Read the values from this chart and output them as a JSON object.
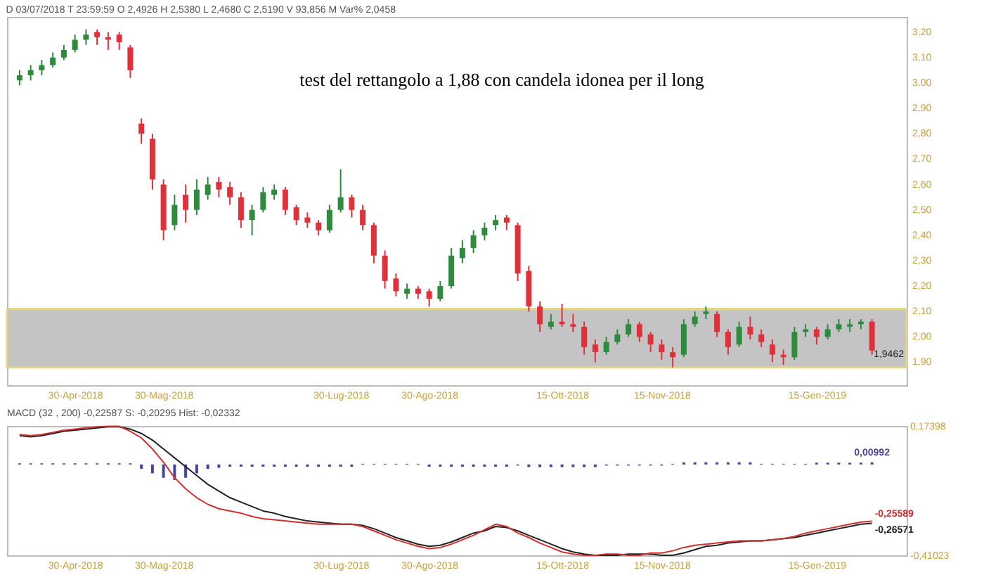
{
  "chart_data": [
    {
      "type": "candlestick",
      "subtitle": "D 03/07/2018 T 23:59:59 O 2,4926 H 2,5380 L 2,4680 C 2,5190 V 93,856 M Var% 2,0458",
      "categories": [
        null,
        null,
        null,
        null,
        null,
        "30-Apr-2018",
        null,
        null,
        null,
        null,
        null,
        null,
        null,
        "30-Mag-2018",
        null,
        null,
        null,
        null,
        null,
        null,
        null,
        null,
        null,
        null,
        null,
        null,
        null,
        null,
        null,
        "30-Lug-2018",
        null,
        null,
        null,
        null,
        null,
        null,
        null,
        "30-Ago-2018",
        null,
        null,
        null,
        null,
        null,
        null,
        null,
        null,
        null,
        null,
        null,
        "15-Ott-2018",
        null,
        null,
        null,
        null,
        null,
        null,
        null,
        null,
        "15-Nov-2018",
        null,
        null,
        null,
        null,
        null,
        null,
        null,
        null,
        null,
        null,
        null,
        null,
        null,
        "15-Gen-2019",
        null,
        null,
        null,
        null,
        null
      ],
      "ohlc": [
        [
          3.01,
          3.05,
          2.99,
          3.03
        ],
        [
          3.03,
          3.07,
          3.01,
          3.05
        ],
        [
          3.05,
          3.09,
          3.03,
          3.07
        ],
        [
          3.07,
          3.12,
          3.06,
          3.1
        ],
        [
          3.1,
          3.15,
          3.09,
          3.13
        ],
        [
          3.13,
          3.19,
          3.12,
          3.17
        ],
        [
          3.17,
          3.21,
          3.15,
          3.19
        ],
        [
          3.2,
          3.21,
          3.15,
          3.18
        ],
        [
          3.18,
          3.2,
          3.13,
          3.17
        ],
        [
          3.19,
          3.2,
          3.13,
          3.16
        ],
        [
          3.14,
          3.15,
          3.02,
          3.05
        ],
        [
          2.84,
          2.86,
          2.76,
          2.8
        ],
        [
          2.78,
          2.8,
          2.58,
          2.62
        ],
        [
          2.6,
          2.62,
          2.38,
          2.42
        ],
        [
          2.44,
          2.56,
          2.42,
          2.52
        ],
        [
          2.56,
          2.6,
          2.45,
          2.5
        ],
        [
          2.5,
          2.62,
          2.48,
          2.58
        ],
        [
          2.56,
          2.63,
          2.54,
          2.6
        ],
        [
          2.61,
          2.63,
          2.55,
          2.58
        ],
        [
          2.59,
          2.61,
          2.52,
          2.55
        ],
        [
          2.55,
          2.57,
          2.43,
          2.46
        ],
        [
          2.46,
          2.52,
          2.4,
          2.5
        ],
        [
          2.5,
          2.59,
          2.49,
          2.57
        ],
        [
          2.56,
          2.6,
          2.54,
          2.58
        ],
        [
          2.58,
          2.59,
          2.48,
          2.5
        ],
        [
          2.51,
          2.52,
          2.44,
          2.46
        ],
        [
          2.47,
          2.49,
          2.43,
          2.45
        ],
        [
          2.45,
          2.46,
          2.4,
          2.42
        ],
        [
          2.42,
          2.52,
          2.41,
          2.5
        ],
        [
          2.5,
          2.66,
          2.49,
          2.55
        ],
        [
          2.55,
          2.56,
          2.47,
          2.5
        ],
        [
          2.5,
          2.52,
          2.42,
          2.44
        ],
        [
          2.44,
          2.45,
          2.29,
          2.32
        ],
        [
          2.32,
          2.34,
          2.19,
          2.22
        ],
        [
          2.23,
          2.25,
          2.16,
          2.18
        ],
        [
          2.17,
          2.21,
          2.15,
          2.19
        ],
        [
          2.19,
          2.2,
          2.15,
          2.17
        ],
        [
          2.18,
          2.19,
          2.12,
          2.15
        ],
        [
          2.15,
          2.22,
          2.14,
          2.2
        ],
        [
          2.2,
          2.35,
          2.19,
          2.32
        ],
        [
          2.31,
          2.38,
          2.29,
          2.35
        ],
        [
          2.35,
          2.42,
          2.33,
          2.4
        ],
        [
          2.4,
          2.45,
          2.38,
          2.43
        ],
        [
          2.44,
          2.48,
          2.42,
          2.46
        ],
        [
          2.47,
          2.48,
          2.42,
          2.45
        ],
        [
          2.44,
          2.45,
          2.22,
          2.25
        ],
        [
          2.26,
          2.28,
          2.1,
          2.12
        ],
        [
          2.12,
          2.14,
          2.02,
          2.05
        ],
        [
          2.04,
          2.09,
          2.03,
          2.06
        ],
        [
          2.06,
          2.13,
          2.04,
          2.05
        ],
        [
          2.05,
          2.09,
          2.02,
          2.04
        ],
        [
          2.04,
          2.06,
          1.93,
          1.96
        ],
        [
          1.97,
          1.99,
          1.9,
          1.94
        ],
        [
          1.94,
          2.0,
          1.93,
          1.98
        ],
        [
          1.98,
          2.03,
          1.97,
          2.01
        ],
        [
          2.01,
          2.07,
          2.0,
          2.05
        ],
        [
          2.05,
          2.06,
          1.98,
          2.0
        ],
        [
          2.01,
          2.02,
          1.94,
          1.97
        ],
        [
          1.97,
          1.99,
          1.91,
          1.94
        ],
        [
          1.94,
          1.96,
          1.88,
          1.92
        ],
        [
          1.93,
          2.07,
          1.92,
          2.05
        ],
        [
          2.05,
          2.1,
          2.04,
          2.08
        ],
        [
          2.09,
          2.12,
          2.07,
          2.1
        ],
        [
          2.09,
          2.1,
          2.0,
          2.02
        ],
        [
          2.02,
          2.03,
          1.93,
          1.96
        ],
        [
          1.97,
          2.06,
          1.96,
          2.04
        ],
        [
          2.04,
          2.08,
          1.99,
          2.01
        ],
        [
          2.01,
          2.03,
          1.96,
          1.98
        ],
        [
          1.97,
          1.99,
          1.9,
          1.93
        ],
        [
          1.93,
          1.95,
          1.89,
          1.92
        ],
        [
          1.92,
          2.04,
          1.91,
          2.02
        ],
        [
          2.02,
          2.05,
          2.0,
          2.03
        ],
        [
          2.03,
          2.04,
          1.97,
          2.0
        ],
        [
          2.0,
          2.05,
          1.99,
          2.03
        ],
        [
          2.03,
          2.07,
          2.02,
          2.05
        ],
        [
          2.04,
          2.07,
          2.02,
          2.05
        ],
        [
          2.05,
          2.07,
          2.03,
          2.06
        ],
        [
          2.06,
          2.07,
          1.93,
          1.9462
        ]
      ],
      "colors": [
        "#2e8b3e",
        "#2e8b3e",
        "#2e8b3e",
        "#2e8b3e",
        "#2e8b3e",
        "#2e8b3e",
        "#2e8b3e",
        "#e0303a",
        "#e0303a",
        "#e0303a",
        "#e0303a",
        "#e0303a",
        "#e0303a",
        "#e0303a",
        "#2e8b3e",
        "#e0303a",
        "#2e8b3e",
        "#2e8b3e",
        "#e0303a",
        "#e0303a",
        "#e0303a",
        "#2e8b3e",
        "#2e8b3e",
        "#2e8b3e",
        "#e0303a",
        "#e0303a",
        "#e0303a",
        "#e0303a",
        "#2e8b3e",
        "#2e8b3e",
        "#e0303a",
        "#e0303a",
        "#e0303a",
        "#e0303a",
        "#e0303a",
        "#2e8b3e",
        "#e0303a",
        "#e0303a",
        "#2e8b3e",
        "#2e8b3e",
        "#2e8b3e",
        "#2e8b3e",
        "#2e8b3e",
        "#2e8b3e",
        "#e0303a",
        "#e0303a",
        "#e0303a",
        "#e0303a",
        "#2e8b3e",
        "#e0303a",
        "#e0303a",
        "#e0303a",
        "#e0303a",
        "#2e8b3e",
        "#2e8b3e",
        "#2e8b3e",
        "#e0303a",
        "#e0303a",
        "#e0303a",
        "#e0303a",
        "#2e8b3e",
        "#2e8b3e",
        "#2e8b3e",
        "#e0303a",
        "#e0303a",
        "#2e8b3e",
        "#e0303a",
        "#e0303a",
        "#e0303a",
        "#e0303a",
        "#2e8b3e",
        "#2e8b3e",
        "#e0303a",
        "#2e8b3e",
        "#2e8b3e",
        "#2e8b3e",
        "#2e8b3e",
        "#e0303a"
      ],
      "ylim": [
        1.81,
        3.26
      ],
      "yticks": [
        {
          "value": 1.9,
          "label": "1,90"
        },
        {
          "value": 2.0,
          "label": "2,00"
        },
        {
          "value": 2.1,
          "label": "2,10"
        },
        {
          "value": 2.2,
          "label": "2,20"
        },
        {
          "value": 2.3,
          "label": "2,30"
        },
        {
          "value": 2.4,
          "label": "2,40"
        },
        {
          "value": 2.5,
          "label": "2,50"
        },
        {
          "value": 2.6,
          "label": "2,60"
        },
        {
          "value": 2.7,
          "label": "2,70"
        },
        {
          "value": 2.8,
          "label": "2,80"
        },
        {
          "value": 2.9,
          "label": "2,90"
        },
        {
          "value": 3.0,
          "label": "3,00"
        },
        {
          "value": 3.1,
          "label": "3,10"
        },
        {
          "value": 3.2,
          "label": "3,20"
        }
      ],
      "bands": [
        {
          "axis": "y",
          "from": 1.88,
          "to": 2.11,
          "color": "#c4c4c4"
        }
      ],
      "annotations": [
        "test del rettangolo a 1,88 con candela idonea per il long",
        "1,9462"
      ],
      "grid": false
    },
    {
      "type": "line",
      "title": "MACD (32 , 200) -0,22587 S: -0,20295 Hist: -0,02332",
      "categories": [
        null,
        null,
        null,
        null,
        null,
        "30-Apr-2018",
        null,
        null,
        null,
        null,
        null,
        null,
        null,
        "30-Mag-2018",
        null,
        null,
        null,
        null,
        null,
        null,
        null,
        null,
        null,
        null,
        null,
        null,
        null,
        null,
        null,
        "30-Lug-2018",
        null,
        null,
        null,
        null,
        null,
        null,
        null,
        "30-Ago-2018",
        null,
        null,
        null,
        null,
        null,
        null,
        null,
        null,
        null,
        null,
        null,
        "15-Ott-2018",
        null,
        null,
        null,
        null,
        null,
        null,
        null,
        null,
        "15-Nov-2018",
        null,
        null,
        null,
        null,
        null,
        null,
        null,
        null,
        null,
        null,
        null,
        null,
        null,
        "15-Gen-2019",
        null,
        null,
        null,
        null,
        null
      ],
      "ylim": [
        -0.41023,
        0.17398
      ],
      "yticks": [
        {
          "value": -0.41023,
          "label": "-0,41023"
        },
        {
          "value": 0.17398,
          "label": "0,17398"
        }
      ],
      "series": [
        {
          "type": "bar",
          "color": "#4646a0",
          "values": [
            0.005,
            0.005,
            0.005,
            0.005,
            0.005,
            0.005,
            0.005,
            0.005,
            0.005,
            0.005,
            0.005,
            -0.02,
            -0.04,
            -0.06,
            -0.07,
            -0.06,
            -0.04,
            -0.02,
            -0.015,
            -0.01,
            -0.01,
            -0.01,
            -0.01,
            -0.01,
            -0.01,
            -0.01,
            -0.01,
            -0.01,
            -0.01,
            -0.01,
            -0.01,
            0.003,
            0.003,
            0.003,
            0.003,
            0.003,
            0.003,
            -0.01,
            -0.01,
            -0.01,
            -0.01,
            -0.01,
            -0.01,
            -0.01,
            -0.01,
            -0.005,
            -0.012,
            -0.012,
            -0.012,
            -0.012,
            -0.012,
            -0.012,
            -0.012,
            -0.005,
            -0.005,
            -0.005,
            -0.005,
            -0.005,
            -0.005,
            0.003,
            0.01,
            0.01,
            0.01,
            0.01,
            0.01,
            0.01,
            0.01,
            0.003,
            0.003,
            0.003,
            0.003,
            0.003,
            0.008,
            0.008,
            0.008,
            0.008,
            0.008,
            0.00992
          ],
          "value_labels": [
            null,
            null,
            null,
            null,
            null,
            null,
            null,
            null,
            null,
            null,
            null,
            null,
            null,
            null,
            null,
            null,
            null,
            null,
            null,
            null,
            null,
            null,
            null,
            null,
            null,
            null,
            null,
            null,
            null,
            null,
            null,
            null,
            null,
            null,
            null,
            null,
            null,
            null,
            null,
            null,
            null,
            null,
            null,
            null,
            null,
            null,
            null,
            null,
            null,
            null,
            null,
            null,
            null,
            null,
            null,
            null,
            null,
            null,
            null,
            null,
            null,
            null,
            null,
            null,
            null,
            null,
            null,
            null,
            null,
            null,
            null,
            null,
            null,
            null,
            null,
            null,
            null,
            "0,00992"
          ]
        },
        {
          "color": "#222222",
          "values": [
            0.13,
            0.125,
            0.13,
            0.14,
            0.15,
            0.155,
            0.16,
            0.165,
            0.17,
            0.17,
            0.16,
            0.14,
            0.11,
            0.07,
            0.03,
            -0.01,
            -0.05,
            -0.09,
            -0.12,
            -0.15,
            -0.17,
            -0.19,
            -0.21,
            -0.22,
            -0.235,
            -0.245,
            -0.255,
            -0.26,
            -0.265,
            -0.27,
            -0.27,
            -0.275,
            -0.29,
            -0.31,
            -0.33,
            -0.345,
            -0.36,
            -0.37,
            -0.365,
            -0.35,
            -0.33,
            -0.31,
            -0.3,
            -0.28,
            -0.285,
            -0.3,
            -0.32,
            -0.34,
            -0.36,
            -0.38,
            -0.395,
            -0.405,
            -0.41,
            -0.41,
            -0.41,
            -0.405,
            -0.405,
            -0.405,
            -0.41,
            -0.41,
            -0.4,
            -0.385,
            -0.37,
            -0.365,
            -0.355,
            -0.35,
            -0.345,
            -0.345,
            -0.34,
            -0.335,
            -0.33,
            -0.32,
            -0.31,
            -0.3,
            -0.29,
            -0.28,
            -0.27,
            -0.26571
          ],
          "value_labels": [
            null,
            null,
            null,
            null,
            null,
            null,
            null,
            null,
            null,
            null,
            null,
            null,
            null,
            null,
            null,
            null,
            null,
            null,
            null,
            null,
            null,
            null,
            null,
            null,
            null,
            null,
            null,
            null,
            null,
            null,
            null,
            null,
            null,
            null,
            null,
            null,
            null,
            null,
            null,
            null,
            null,
            null,
            null,
            null,
            null,
            null,
            null,
            null,
            null,
            null,
            null,
            null,
            null,
            null,
            null,
            null,
            null,
            null,
            null,
            null,
            null,
            null,
            null,
            null,
            null,
            null,
            null,
            null,
            null,
            null,
            null,
            null,
            null,
            null,
            null,
            null,
            null,
            "-0,26571"
          ]
        },
        {
          "color": "#d03030",
          "values": [
            0.135,
            0.13,
            0.135,
            0.145,
            0.155,
            0.16,
            0.165,
            0.17,
            0.172,
            0.172,
            0.15,
            0.12,
            0.07,
            0.01,
            -0.06,
            -0.11,
            -0.15,
            -0.18,
            -0.2,
            -0.21,
            -0.22,
            -0.235,
            -0.245,
            -0.25,
            -0.255,
            -0.26,
            -0.265,
            -0.27,
            -0.27,
            -0.27,
            -0.27,
            -0.28,
            -0.3,
            -0.32,
            -0.34,
            -0.355,
            -0.37,
            -0.38,
            -0.375,
            -0.36,
            -0.34,
            -0.32,
            -0.295,
            -0.27,
            -0.28,
            -0.31,
            -0.33,
            -0.355,
            -0.375,
            -0.395,
            -0.405,
            -0.41,
            -0.41,
            -0.405,
            -0.405,
            -0.41,
            -0.41,
            -0.4,
            -0.4,
            -0.39,
            -0.375,
            -0.365,
            -0.36,
            -0.355,
            -0.35,
            -0.345,
            -0.345,
            -0.345,
            -0.34,
            -0.335,
            -0.325,
            -0.31,
            -0.3,
            -0.29,
            -0.28,
            -0.27,
            -0.26,
            -0.25589
          ],
          "value_labels": [
            null,
            null,
            null,
            null,
            null,
            null,
            null,
            null,
            null,
            null,
            null,
            null,
            null,
            null,
            null,
            null,
            null,
            null,
            null,
            null,
            null,
            null,
            null,
            null,
            null,
            null,
            null,
            null,
            null,
            null,
            null,
            null,
            null,
            null,
            null,
            null,
            null,
            null,
            null,
            null,
            null,
            null,
            null,
            null,
            null,
            null,
            null,
            null,
            null,
            null,
            null,
            null,
            null,
            null,
            null,
            null,
            null,
            null,
            null,
            null,
            null,
            null,
            null,
            null,
            null,
            null,
            null,
            null,
            null,
            null,
            null,
            null,
            null,
            null,
            null,
            null,
            null,
            "-0,25589"
          ]
        }
      ],
      "grid": false
    }
  ]
}
